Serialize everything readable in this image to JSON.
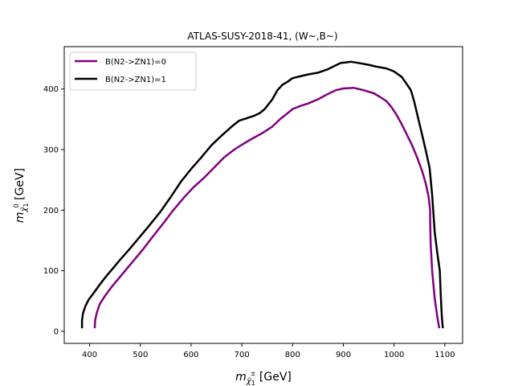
{
  "chart_data": {
    "type": "line",
    "title": "ATLAS-SUSY-2018-41, (W~,B~)",
    "xlabel": {
      "main": "m",
      "sub": "χ̃",
      "sub_sub": "1",
      "sup": "±",
      "unit": " [GeV]"
    },
    "ylabel": {
      "main": "m",
      "sub": "χ̃",
      "sub_sub": "1",
      "sup": "0",
      "unit": " [GeV]"
    },
    "xlim": [
      350,
      1135
    ],
    "ylim": [
      -20,
      470
    ],
    "xticks": [
      400,
      500,
      600,
      700,
      800,
      900,
      1000,
      1100
    ],
    "yticks": [
      0,
      100,
      200,
      300,
      400
    ],
    "grid": false,
    "legend_position": "upper-left",
    "series": [
      {
        "name": "B(N2->ZN1)=0",
        "color": "#800080",
        "points": [
          [
            410,
            5
          ],
          [
            411,
            18
          ],
          [
            414,
            30
          ],
          [
            420,
            45
          ],
          [
            430,
            58
          ],
          [
            445,
            75
          ],
          [
            465,
            95
          ],
          [
            485,
            115
          ],
          [
            505,
            135
          ],
          [
            525,
            157
          ],
          [
            545,
            178
          ],
          [
            565,
            200
          ],
          [
            585,
            220
          ],
          [
            605,
            238
          ],
          [
            625,
            253
          ],
          [
            645,
            270
          ],
          [
            665,
            287
          ],
          [
            685,
            300
          ],
          [
            700,
            308
          ],
          [
            720,
            318
          ],
          [
            740,
            327
          ],
          [
            760,
            338
          ],
          [
            775,
            350
          ],
          [
            790,
            360
          ],
          [
            800,
            367
          ],
          [
            815,
            372
          ],
          [
            830,
            376
          ],
          [
            850,
            383
          ],
          [
            870,
            392
          ],
          [
            885,
            398
          ],
          [
            900,
            401
          ],
          [
            920,
            402
          ],
          [
            940,
            398
          ],
          [
            960,
            393
          ],
          [
            972,
            387
          ],
          [
            985,
            380
          ],
          [
            995,
            370
          ],
          [
            1005,
            357
          ],
          [
            1015,
            342
          ],
          [
            1025,
            325
          ],
          [
            1035,
            308
          ],
          [
            1045,
            288
          ],
          [
            1055,
            265
          ],
          [
            1062,
            245
          ],
          [
            1068,
            222
          ],
          [
            1071,
            200
          ],
          [
            1071,
            185
          ],
          [
            1072,
            145
          ],
          [
            1075,
            100
          ],
          [
            1080,
            55
          ],
          [
            1085,
            25
          ],
          [
            1089,
            5
          ]
        ]
      },
      {
        "name": "B(N2->ZN1)=1",
        "color": "#000000",
        "points": [
          [
            385,
            5
          ],
          [
            385,
            18
          ],
          [
            387,
            30
          ],
          [
            392,
            42
          ],
          [
            398,
            52
          ],
          [
            407,
            62
          ],
          [
            418,
            75
          ],
          [
            430,
            88
          ],
          [
            445,
            103
          ],
          [
            460,
            118
          ],
          [
            480,
            137
          ],
          [
            500,
            157
          ],
          [
            520,
            177
          ],
          [
            540,
            198
          ],
          [
            560,
            222
          ],
          [
            580,
            247
          ],
          [
            600,
            268
          ],
          [
            620,
            287
          ],
          [
            640,
            307
          ],
          [
            660,
            323
          ],
          [
            680,
            338
          ],
          [
            695,
            348
          ],
          [
            710,
            352
          ],
          [
            725,
            356
          ],
          [
            735,
            360
          ],
          [
            745,
            367
          ],
          [
            760,
            383
          ],
          [
            770,
            398
          ],
          [
            780,
            407
          ],
          [
            790,
            412
          ],
          [
            800,
            418
          ],
          [
            815,
            421
          ],
          [
            830,
            424
          ],
          [
            850,
            427
          ],
          [
            870,
            433
          ],
          [
            885,
            439
          ],
          [
            895,
            443
          ],
          [
            905,
            444
          ],
          [
            915,
            445
          ],
          [
            930,
            443
          ],
          [
            950,
            440
          ],
          [
            965,
            437
          ],
          [
            985,
            434
          ],
          [
            1000,
            429
          ],
          [
            1015,
            420
          ],
          [
            1025,
            408
          ],
          [
            1033,
            398
          ],
          [
            1040,
            378
          ],
          [
            1048,
            350
          ],
          [
            1055,
            325
          ],
          [
            1062,
            300
          ],
          [
            1070,
            270
          ],
          [
            1075,
            225
          ],
          [
            1080,
            165
          ],
          [
            1085,
            130
          ],
          [
            1090,
            100
          ],
          [
            1092,
            60
          ],
          [
            1094,
            25
          ],
          [
            1096,
            5
          ]
        ]
      }
    ]
  }
}
